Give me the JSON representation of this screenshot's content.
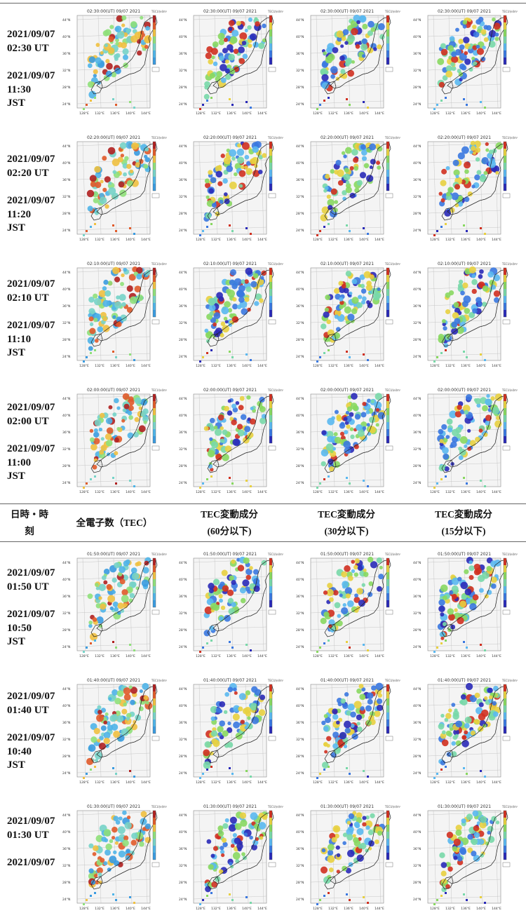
{
  "header": {
    "col_datetime": [
      "日時・時",
      "刻"
    ],
    "col_tec": "全電子数（TEC）",
    "col_60": [
      "TEC変動成分",
      "(60分以下)"
    ],
    "col_30": [
      "TEC変動成分",
      "(30分以下)"
    ],
    "col_15": [
      "TEC変動成分",
      "(15分以下)"
    ]
  },
  "map_text": {
    "unit": "TECU(el/m²)",
    "lat_ticks": [
      "44°N",
      "40°N",
      "36°N",
      "32°N",
      "28°N",
      "24°N"
    ],
    "lon_ticks": [
      "128°E",
      "132°E",
      "136°E",
      "140°E",
      "144°E"
    ]
  },
  "rows": [
    {
      "utc_date": "2021/09/07",
      "utc_time": "02:30 UT",
      "jst_date": "2021/09/07",
      "jst_time": "11:30",
      "jst_label": "JST",
      "map_title": "02:30:00(UT) 09/07 2021"
    },
    {
      "utc_date": "2021/09/07",
      "utc_time": "02:20 UT",
      "jst_date": "2021/09/07",
      "jst_time": "11:20",
      "jst_label": "JST",
      "map_title": "02:20:00(UT) 09/07 2021"
    },
    {
      "utc_date": "2021/09/07",
      "utc_time": "02:10 UT",
      "jst_date": "2021/09/07",
      "jst_time": "11:10",
      "jst_label": "JST",
      "map_title": "02:10:00(UT) 09/07 2021"
    },
    {
      "utc_date": "2021/09/07",
      "utc_time": "02:00 UT",
      "jst_date": "2021/09/07",
      "jst_time": "11:00",
      "jst_label": "JST",
      "map_title": "02:00:00(UT) 09/07 2021"
    },
    {
      "utc_date": "2021/09/07",
      "utc_time": "01:50 UT",
      "jst_date": "2021/09/07",
      "jst_time": "10:50",
      "jst_label": "JST",
      "map_title": "01:50:00(UT) 09/07 2021"
    },
    {
      "utc_date": "2021/09/07",
      "utc_time": "01:40 UT",
      "jst_date": "2021/09/07",
      "jst_time": "10:40",
      "jst_label": "JST",
      "map_title": "01:40:00(UT) 09/07 2021"
    },
    {
      "utc_date": "2021/09/07",
      "utc_time": "01:30 UT",
      "jst_date": "2021/09/07",
      "jst_time": "",
      "jst_label": "",
      "map_title": "01:30:00(UT) 09/07 2021"
    }
  ],
  "colors": {
    "tec_map": [
      "#3a9be0",
      "#4fb4e8",
      "#76d3c8",
      "#8fe07a",
      "#f0c040",
      "#e05a2a",
      "#b02020"
    ],
    "variation_map": [
      "#2a2ab8",
      "#3a78e0",
      "#5ab8f0",
      "#78d8a8",
      "#88d860",
      "#e8d040",
      "#d03020"
    ]
  }
}
